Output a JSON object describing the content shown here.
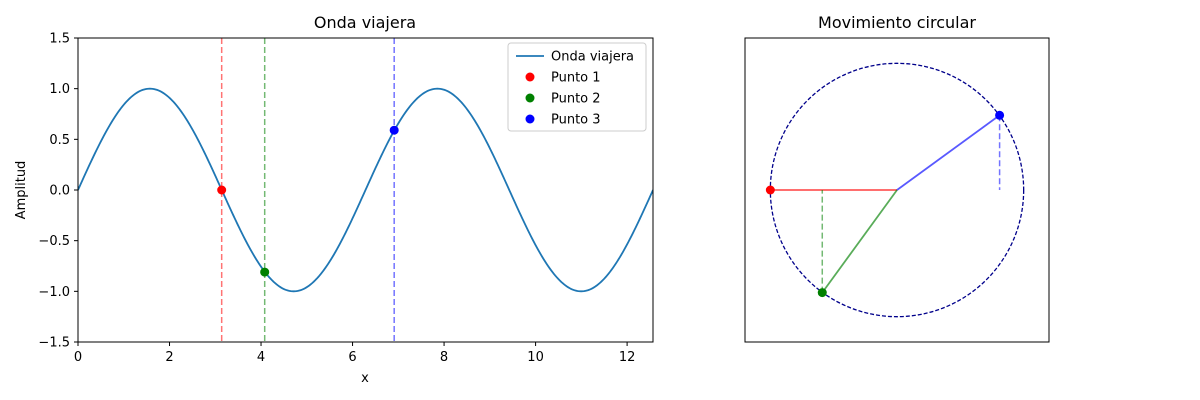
{
  "chart_data": [
    {
      "type": "line",
      "title": "Onda viajera",
      "xlabel": "x",
      "ylabel": "Amplitud",
      "xlim": [
        0,
        12.566
      ],
      "ylim": [
        -1.5,
        1.5
      ],
      "xticks": [
        0,
        2,
        4,
        6,
        8,
        10,
        12
      ],
      "yticks": [
        -1.5,
        -1.0,
        -0.5,
        0.0,
        0.5,
        1.0,
        1.5
      ],
      "xtick_labels": [
        "0",
        "2",
        "4",
        "6",
        "8",
        "10",
        "12"
      ],
      "ytick_labels": [
        "−1.5",
        "−1.0",
        "−0.5",
        "0.0",
        "0.5",
        "1.0",
        "1.5"
      ],
      "grid": false,
      "legend_position": "top-right",
      "colors": {
        "wave": "#1f77b4",
        "p1": "#ff0000",
        "p2": "#008000",
        "p3": "#0000ff"
      },
      "series": [
        {
          "name": "Onda viajera",
          "kind": "line",
          "function": "sin(x)",
          "color": "#1f77b4"
        },
        {
          "name": "Punto 1",
          "kind": "point",
          "x": 3.14,
          "y": 0.0,
          "color": "#ff0000"
        },
        {
          "name": "Punto 2",
          "kind": "point",
          "x": 4.08,
          "y": -0.81,
          "color": "#008000"
        },
        {
          "name": "Punto 3",
          "kind": "point",
          "x": 6.91,
          "y": 0.59,
          "color": "#0000ff"
        }
      ]
    },
    {
      "type": "scatter",
      "title": "Movimiento circular",
      "xlim": [
        -1.2,
        1.2
      ],
      "ylim": [
        -1.2,
        1.2
      ],
      "axes_visible": false,
      "circle_radius": 1,
      "circle_color": "#00008b",
      "points": [
        {
          "name": "Punto 1",
          "x": -1.0,
          "y": 0.0,
          "color": "#ff0000"
        },
        {
          "name": "Punto 2",
          "x": -0.59,
          "y": -0.81,
          "color": "#008000"
        },
        {
          "name": "Punto 3",
          "x": 0.81,
          "y": 0.59,
          "color": "#0000ff"
        }
      ]
    }
  ]
}
